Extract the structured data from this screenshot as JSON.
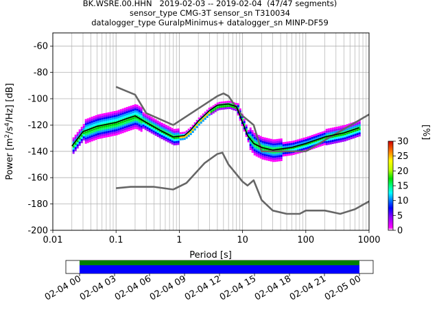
{
  "title": {
    "line1": "BK.WSRE.00.HHN   2019-02-03 -- 2019-02-04  (47/47 segments)",
    "line2": "sensor_type CMG-3T sensor_sn T310034",
    "line3": "datalogger_type GuralpMinimus+ datalogger_sn MINP-DF59"
  },
  "colorbar": {
    "label": "[%]",
    "ticks": [
      "0",
      "5",
      "10",
      "15",
      "20",
      "25",
      "30"
    ],
    "range": [
      0,
      30
    ]
  },
  "timeline": {
    "tick_labels": [
      "02-04 00",
      "02-04 03",
      "02-04 06",
      "02-04 09",
      "02-04 12",
      "02-04 15",
      "02-04 18",
      "02-04 21",
      "02-05 00"
    ],
    "bar_colors": {
      "top": "#008000",
      "bottom": "#0000ff"
    }
  },
  "chart_data": {
    "type": "heatmap",
    "xlabel": "Period [s]",
    "ylabel": "Power [m²/s⁴/Hz] [dB]",
    "x_scale": "log",
    "xlim": [
      0.01,
      1000
    ],
    "ylim": [
      -200,
      -50
    ],
    "x_ticks": [
      "0.01",
      "0.1",
      "1",
      "10",
      "100",
      "1000"
    ],
    "x_tick_values": [
      0.01,
      0.1,
      1,
      10,
      100,
      1000
    ],
    "y_ticks": [
      "-60",
      "-80",
      "-100",
      "-120",
      "-140",
      "-160",
      "-180",
      "-200"
    ],
    "y_tick_values": [
      -60,
      -80,
      -100,
      -120,
      -140,
      -160,
      -180,
      -200
    ],
    "grid": true,
    "series": [
      {
        "role": "noise-model-high",
        "color": "#666666",
        "points": [
          [
            0.1,
            -91
          ],
          [
            0.2,
            -97
          ],
          [
            0.3,
            -111
          ],
          [
            0.8,
            -120
          ],
          [
            4,
            -98
          ],
          [
            5,
            -96
          ],
          [
            6,
            -98
          ],
          [
            8,
            -107
          ],
          [
            10,
            -113
          ],
          [
            15,
            -120
          ],
          [
            20,
            -140
          ],
          [
            100,
            -140
          ],
          [
            1000,
            -112
          ]
        ]
      },
      {
        "role": "noise-model-low",
        "color": "#666666",
        "points": [
          [
            0.1,
            -168
          ],
          [
            0.17,
            -167
          ],
          [
            0.4,
            -167
          ],
          [
            0.8,
            -169
          ],
          [
            1.3,
            -164
          ],
          [
            2.5,
            -149
          ],
          [
            4,
            -142
          ],
          [
            4.8,
            -141
          ],
          [
            6,
            -150
          ],
          [
            10,
            -163
          ],
          [
            12,
            -166
          ],
          [
            15,
            -162
          ],
          [
            20,
            -177
          ],
          [
            30,
            -185
          ],
          [
            50,
            -187.5
          ],
          [
            80,
            -187.5
          ],
          [
            100,
            -185
          ],
          [
            200,
            -185
          ],
          [
            350,
            -187.5
          ],
          [
            600,
            -184
          ],
          [
            1000,
            -178
          ]
        ]
      },
      {
        "role": "mode",
        "color": "#000000",
        "points": [
          [
            0.02,
            -136
          ],
          [
            0.03,
            -125
          ],
          [
            0.05,
            -121
          ],
          [
            0.1,
            -118
          ],
          [
            0.15,
            -115
          ],
          [
            0.2,
            -113
          ],
          [
            0.3,
            -118
          ],
          [
            0.5,
            -124
          ],
          [
            0.8,
            -129
          ],
          [
            1.2,
            -128
          ],
          [
            1.5,
            -124
          ],
          [
            2,
            -117
          ],
          [
            3,
            -109
          ],
          [
            4,
            -105
          ],
          [
            6,
            -104
          ],
          [
            8,
            -106
          ],
          [
            10,
            -118
          ],
          [
            12,
            -128
          ],
          [
            15,
            -134
          ],
          [
            20,
            -137
          ],
          [
            30,
            -139
          ],
          [
            60,
            -137
          ],
          [
            100,
            -134
          ],
          [
            200,
            -129
          ],
          [
            400,
            -126
          ],
          [
            700,
            -122
          ]
        ]
      }
    ]
  }
}
